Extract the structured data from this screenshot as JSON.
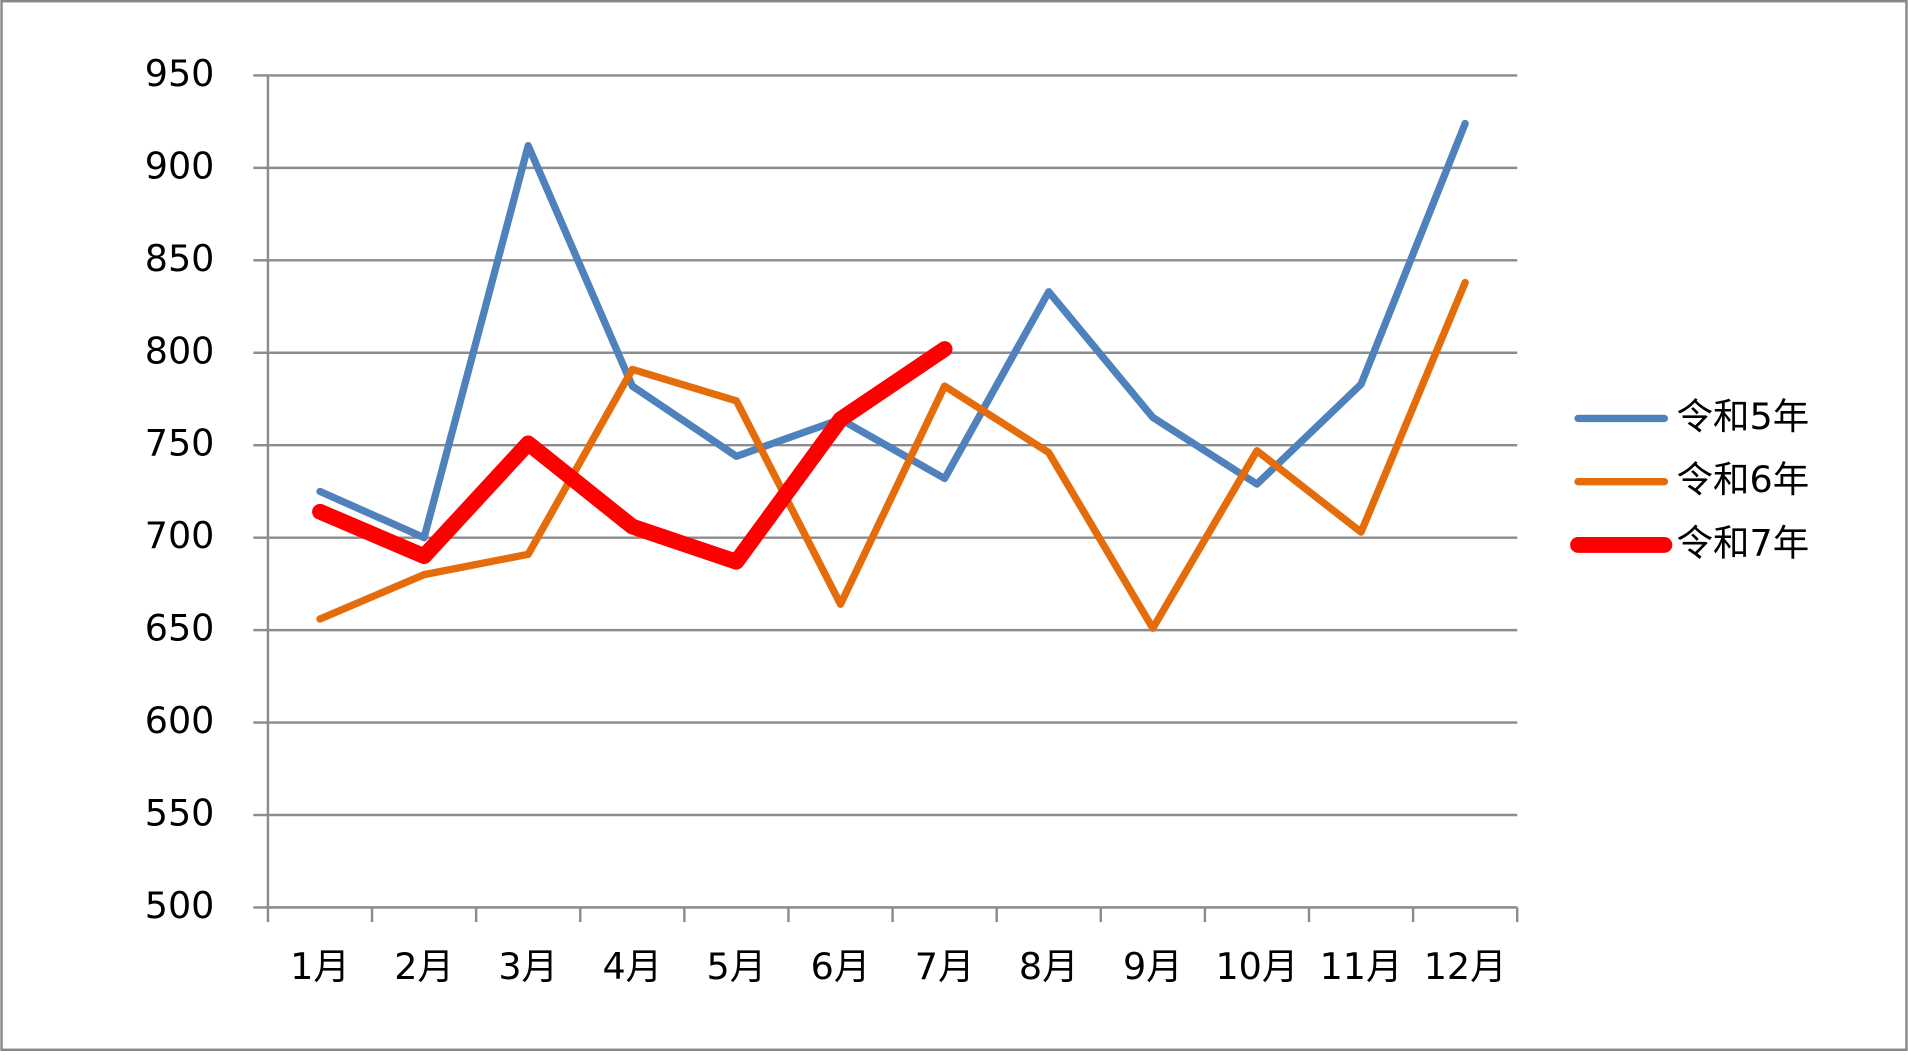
{
  "chart_data": {
    "type": "line",
    "categories": [
      "1月",
      "2月",
      "3月",
      "4月",
      "5月",
      "6月",
      "7月",
      "8月",
      "9月",
      "10月",
      "11月",
      "12月"
    ],
    "series": [
      {
        "name": "令和5年",
        "color": "#4f81bd",
        "values": [
          725,
          700,
          912,
          782,
          744,
          764,
          732,
          833,
          765,
          729,
          783,
          924
        ]
      },
      {
        "name": "令和6年",
        "color": "#e46c0a",
        "values": [
          656,
          680,
          691,
          791,
          774,
          664,
          782,
          746,
          651,
          747,
          703,
          838
        ]
      },
      {
        "name": "令和7年",
        "color": "#ff0000",
        "values": [
          714,
          690,
          751,
          706,
          687,
          764,
          802,
          null,
          null,
          null,
          null,
          null
        ]
      }
    ],
    "ylim": [
      500,
      950
    ],
    "yticks": [
      500,
      550,
      600,
      650,
      700,
      750,
      800,
      850,
      900,
      950
    ],
    "grid": true,
    "legend": "right"
  }
}
